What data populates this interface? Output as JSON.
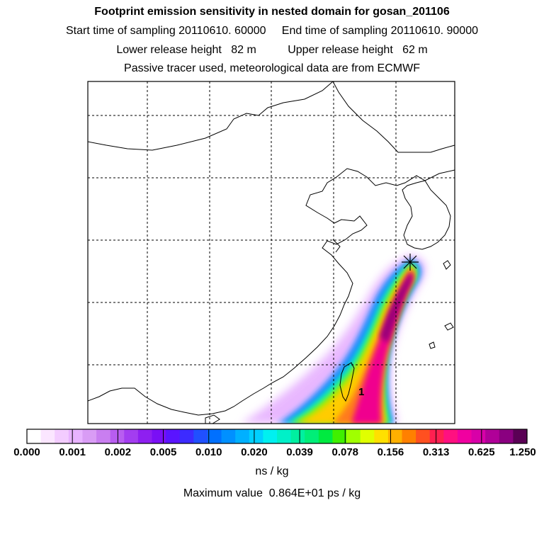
{
  "title": {
    "line1": "Footprint emission sensitivity in nested domain for gosan_201106",
    "line2": "Start time of sampling 20110610. 60000     End time of sampling 20110610. 90000",
    "line3": "Lower release height   82 m          Upper release height   62 m",
    "line4": "Passive tracer used, meteorological data are from ECMWF"
  },
  "map": {
    "release_site_label": "1",
    "receptor_marker": "asterisk-icon"
  },
  "colorbar": {
    "colors": [
      "#ffffff",
      "#fbe6ff",
      "#f3ccff",
      "#e8b3ff",
      "#d99cf5",
      "#c97ef0",
      "#b85df0",
      "#a33df0",
      "#8e1ff0",
      "#7a0ff5",
      "#5a14ff",
      "#3c2bff",
      "#2050ff",
      "#0070ff",
      "#0090ff",
      "#00b0ff",
      "#00d0ff",
      "#00f0f0",
      "#00f0c8",
      "#00f0a0",
      "#00ee78",
      "#00ea40",
      "#40f000",
      "#a0ff00",
      "#e0ff00",
      "#ffe000",
      "#ffb000",
      "#ff8000",
      "#ff5020",
      "#ff2050",
      "#ff1080",
      "#f000a0",
      "#d800a8",
      "#b00098",
      "#8a0080",
      "#5a0055"
    ],
    "tick_labels": [
      "0.000",
      "0.001",
      "0.002",
      "0.005",
      "0.010",
      "0.020",
      "0.039",
      "0.078",
      "0.156",
      "0.313",
      "0.625",
      "1.250"
    ],
    "unit": "ns / kg"
  },
  "max_value": "Maximum value  0.864E+01 ps / kg"
}
